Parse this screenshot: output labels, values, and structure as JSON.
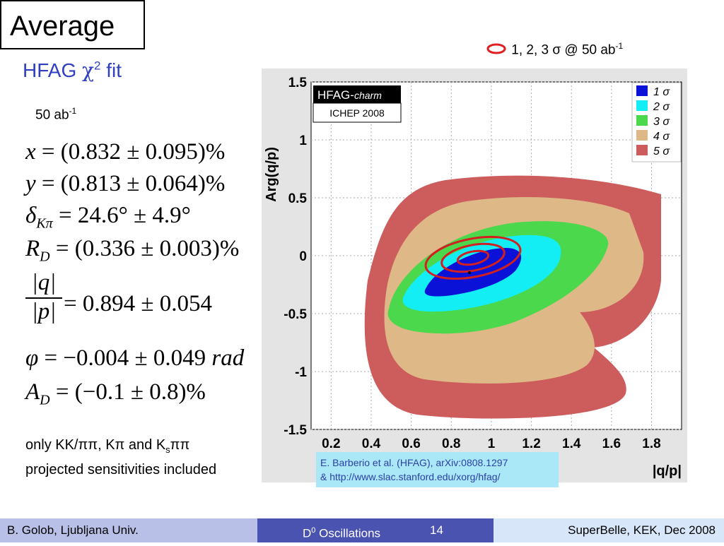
{
  "slide": {
    "title": "Average",
    "subtitle_prefix": "HFAG ",
    "subtitle_chi": "χ",
    "subtitle_sup": "2",
    "subtitle_suffix": " fit",
    "lumi_text": "50 ab",
    "lumi_sup": "-1"
  },
  "equations": [
    {
      "lhs": "x",
      "rhs": " = (0.832 ± 0.095)%"
    },
    {
      "lhs": "y",
      "rhs": " = (0.813 ± 0.064)%"
    },
    {
      "lhs": "δ",
      "sub": "Kπ",
      "rhs": " = 24.6° ± 4.9°"
    },
    {
      "lhs": "R",
      "sub": "D",
      "rhs": " = (0.336 ± 0.003)%"
    },
    {
      "num": "|q|",
      "den": "|p|",
      "rhs": " = 0.894 ± 0.054"
    },
    {
      "lhs": "φ",
      "rhs": " = −0.004 ± 0.049 ",
      "unit": "rad"
    },
    {
      "lhs": "A",
      "sub": "D",
      "rhs": " = (−0.1 ± 0.8)%"
    }
  ],
  "note": {
    "line1_a": "only KK/ππ, Kπ and K",
    "line1_sub": "s",
    "line1_b": "ππ",
    "line2": "projected sensitivities included"
  },
  "top_legend": {
    "text": "1, 2, 3 σ @ 50 ab",
    "sup": "-1",
    "color": "#e02020"
  },
  "chart_data": {
    "type": "contour",
    "xlabel": "|q/p|",
    "ylabel": "Arg(q/p)",
    "xlim": [
      0.1,
      1.95
    ],
    "ylim": [
      -1.5,
      1.5
    ],
    "x_ticks": [
      "0.2",
      "0.4",
      "0.6",
      "0.8",
      "1",
      "1.2",
      "1.4",
      "1.6",
      "1.8"
    ],
    "y_ticks": [
      "1.5",
      "1",
      "0.5",
      "0",
      "-0.5",
      "-1",
      "-1.5"
    ],
    "badge_title": "HFAG-",
    "badge_title_italic": "charm",
    "badge_sub": "ICHEP 2008",
    "legend": [
      {
        "label": "1 σ",
        "color": "#0b12d8"
      },
      {
        "label": "2 σ",
        "color": "#13eef5"
      },
      {
        "label": "3 σ",
        "color": "#4cd84c"
      },
      {
        "label": "4 σ",
        "color": "#deb887"
      },
      {
        "label": "5 σ",
        "color": "#cd5c5c"
      }
    ],
    "central_value": {
      "x": 0.894,
      "y": -0.004
    },
    "overlay_contours_sigma": [
      1,
      2,
      3
    ]
  },
  "citation": {
    "line1": "E. Barberio et al. (HFAG), arXiv:0808.1297",
    "line2": "& http://www.slac.stanford.edu/xorg/hfag/"
  },
  "footer": {
    "left": "B. Golob, Ljubljana Univ.",
    "mid_prefix": "D",
    "mid_sup": "0",
    "mid_suffix": " Oscillations",
    "page": "14",
    "right": "SuperBelle, KEK, Dec 2008"
  }
}
